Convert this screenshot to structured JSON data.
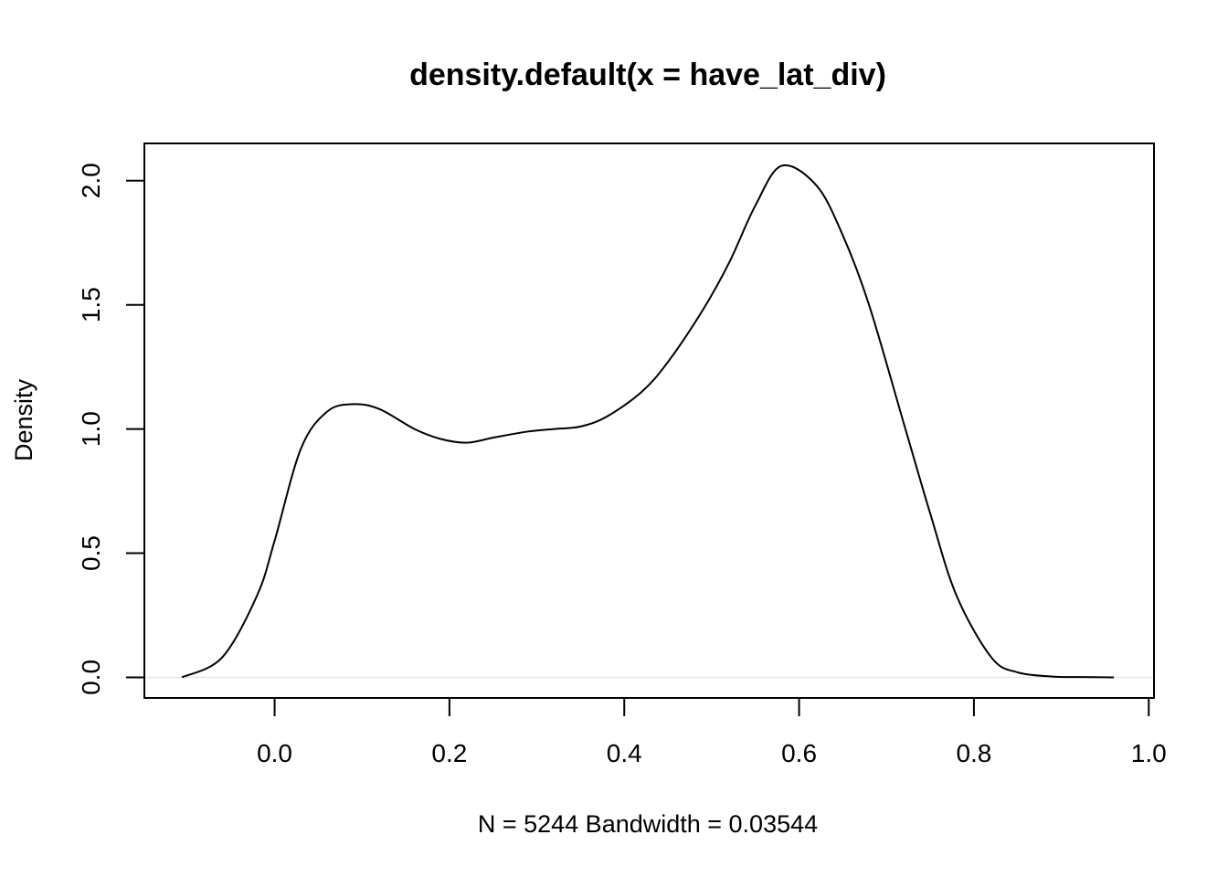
{
  "chart_data": {
    "type": "line",
    "title": "density.default(x = have_lat_div)",
    "xlabel": "N = 5244   Bandwidth = 0.03544",
    "ylabel": "Density",
    "xlim": [
      -0.149,
      1.006
    ],
    "ylim": [
      -0.083,
      2.15
    ],
    "x_ticks": [
      "0.0",
      "0.2",
      "0.4",
      "0.6",
      "0.8",
      "1.0"
    ],
    "y_ticks": [
      "0.0",
      "0.5",
      "1.0",
      "1.5",
      "2.0"
    ],
    "grid": false,
    "baseline": 0,
    "series": [
      {
        "x": [
          -0.106,
          -0.06,
          -0.02,
          0.0,
          0.03,
          0.06,
          0.09,
          0.12,
          0.16,
          0.19,
          0.22,
          0.25,
          0.29,
          0.32,
          0.35,
          0.38,
          0.42,
          0.45,
          0.49,
          0.52,
          0.55,
          0.58,
          0.62,
          0.65,
          0.68,
          0.72,
          0.75,
          0.78,
          0.82,
          0.85,
          0.89,
          0.92,
          0.96
        ],
        "y": [
          0.0,
          0.08,
          0.33,
          0.55,
          0.92,
          1.07,
          1.1,
          1.08,
          1.0,
          0.96,
          0.945,
          0.965,
          0.99,
          1.0,
          1.01,
          1.05,
          1.15,
          1.27,
          1.48,
          1.67,
          1.9,
          2.06,
          1.98,
          1.78,
          1.5,
          1.02,
          0.66,
          0.33,
          0.08,
          0.02,
          0.003,
          0.001,
          0.0
        ]
      }
    ]
  }
}
